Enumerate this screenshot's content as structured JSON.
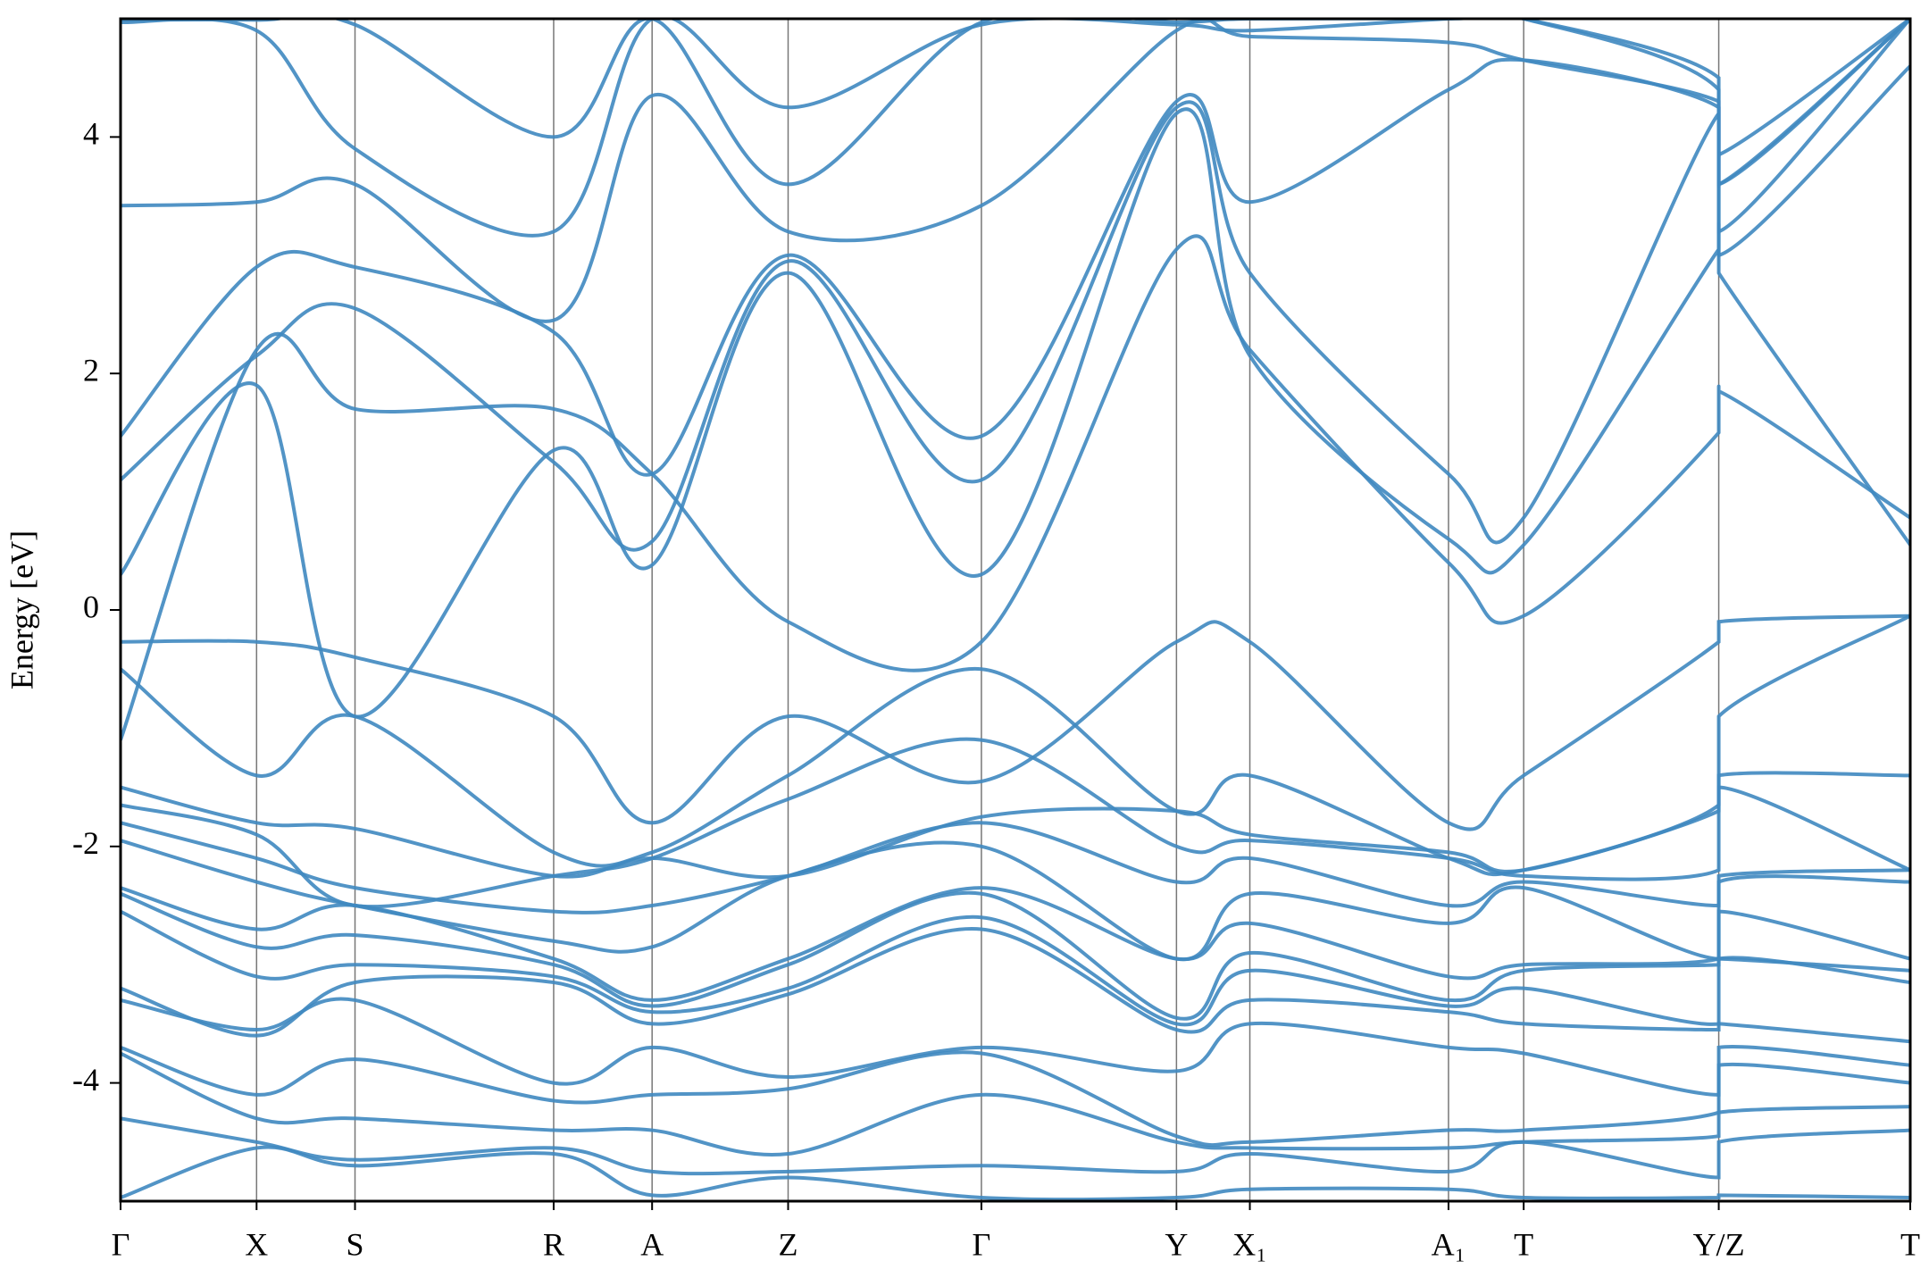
{
  "chart_data": {
    "type": "line",
    "ylabel": "Energy [eV]",
    "x": [
      0,
      0.076,
      0.131,
      0.242,
      0.297,
      0.373,
      0.481,
      0.59,
      0.631,
      0.742,
      0.784,
      0.893,
      0.893,
      1.0
    ],
    "xlim": [
      0,
      1
    ],
    "xticks": [
      {
        "value": 0,
        "label": "Γ"
      },
      {
        "value": 0.076,
        "label": "X"
      },
      {
        "value": 0.131,
        "label": "S"
      },
      {
        "value": 0.242,
        "label": "R"
      },
      {
        "value": 0.297,
        "label": "A"
      },
      {
        "value": 0.373,
        "label": "Z"
      },
      {
        "value": 0.481,
        "label": "Γ"
      },
      {
        "value": 0.59,
        "label": "Y"
      },
      {
        "value": 0.631,
        "label": "X₁"
      },
      {
        "value": 0.742,
        "label": "A₁"
      },
      {
        "value": 0.784,
        "label": "T"
      },
      {
        "value": 0.893,
        "label": "Y/Z"
      },
      {
        "value": 1.0,
        "label": "T"
      }
    ],
    "ylim": [
      -5,
      5
    ],
    "yticks": [
      -4,
      -2,
      0,
      2,
      4
    ],
    "series": [
      {
        "color": "#3f88c0",
        "values": [
          -0.27,
          -0.27,
          -0.4,
          -0.9,
          -1.8,
          -0.9,
          -1.45,
          -0.27,
          -0.27,
          -1.8,
          -1.4,
          -0.27,
          -0.1,
          -0.05
        ]
      },
      {
        "color": "#3f88c0",
        "values": [
          -0.5,
          -1.4,
          -0.9,
          -2.05,
          -2.05,
          -1.4,
          -0.5,
          -1.7,
          -1.4,
          -2.1,
          -2.2,
          -1.65,
          -0.9,
          -0.05
        ]
      },
      {
        "color": "#3f88c0",
        "values": [
          -1.1,
          2.2,
          1.7,
          1.7,
          1.15,
          -0.1,
          -0.27,
          3.05,
          2.2,
          0.4,
          -0.05,
          1.5,
          1.85,
          0.78
        ]
      },
      {
        "color": "#3f88c0",
        "values": [
          0.3,
          1.9,
          -0.9,
          1.35,
          0.38,
          2.85,
          0.3,
          4.2,
          2.15,
          0.6,
          0.55,
          3.05,
          2.85,
          0.55
        ]
      },
      {
        "color": "#3f88c0",
        "values": [
          1.1,
          2.15,
          2.55,
          1.25,
          0.58,
          2.95,
          1.1,
          4.25,
          2.85,
          1.15,
          0.78,
          4.2,
          3.0,
          4.6
        ]
      },
      {
        "color": "#3f88c0",
        "values": [
          1.47,
          2.9,
          2.9,
          2.35,
          1.15,
          3.0,
          1.47,
          4.3,
          3.45,
          4.4,
          4.65,
          4.25,
          3.6,
          5.0
        ]
      },
      {
        "color": "#3f88c0",
        "values": [
          3.42,
          3.45,
          3.6,
          2.45,
          4.35,
          3.2,
          3.42,
          4.9,
          4.85,
          4.8,
          4.65,
          4.3,
          3.85,
          5.0
        ]
      },
      {
        "color": "#3f88c0",
        "values": [
          4.97,
          4.9,
          3.9,
          3.2,
          5.0,
          4.25,
          4.95,
          4.95,
          4.9,
          5.0,
          5.0,
          4.4,
          3.2,
          5.0
        ]
      },
      {
        "color": "#3f88c0",
        "values": [
          4.99,
          4.99,
          4.95,
          4.0,
          5.0,
          3.6,
          4.97,
          4.97,
          5.0,
          5.0,
          5.0,
          4.5,
          3.6,
          5.0
        ]
      },
      {
        "color": "#3f88c0",
        "values": [
          -1.5,
          -1.8,
          -1.85,
          -2.25,
          -2.1,
          -2.25,
          -1.75,
          -1.7,
          -1.9,
          -2.05,
          -2.2,
          -1.7,
          -1.4,
          -1.4
        ]
      },
      {
        "color": "#3f88c0",
        "values": [
          -1.65,
          -1.9,
          -2.5,
          -2.25,
          -2.1,
          -1.6,
          -1.1,
          -2.0,
          -1.95,
          -2.1,
          -2.25,
          -2.2,
          -1.5,
          -2.2
        ]
      },
      {
        "color": "#3f88c0",
        "values": [
          -1.8,
          -2.1,
          -2.35,
          -2.55,
          -2.5,
          -2.25,
          -1.8,
          -2.3,
          -2.1,
          -2.5,
          -2.3,
          -2.5,
          -2.25,
          -2.2
        ]
      },
      {
        "color": "#3f88c0",
        "values": [
          -1.95,
          -2.3,
          -2.5,
          -2.8,
          -2.85,
          -2.25,
          -2.0,
          -2.95,
          -2.4,
          -2.65,
          -2.35,
          -2.95,
          -2.3,
          -2.3
        ]
      },
      {
        "color": "#3f88c0",
        "values": [
          -2.35,
          -2.7,
          -2.5,
          -2.95,
          -3.3,
          -2.95,
          -2.35,
          -2.95,
          -2.65,
          -3.1,
          -3.0,
          -2.95,
          -2.55,
          -2.95
        ]
      },
      {
        "color": "#3f88c0",
        "values": [
          -2.4,
          -2.85,
          -2.75,
          -3.0,
          -3.35,
          -3.0,
          -2.4,
          -3.45,
          -2.9,
          -3.3,
          -3.05,
          -3.0,
          -2.95,
          -3.05
        ]
      },
      {
        "color": "#3f88c0",
        "values": [
          -2.55,
          -3.1,
          -3.0,
          -3.1,
          -3.4,
          -3.2,
          -2.6,
          -3.5,
          -3.05,
          -3.35,
          -3.2,
          -3.5,
          -2.95,
          -3.15
        ]
      },
      {
        "color": "#3f88c0",
        "values": [
          -3.2,
          -3.6,
          -3.15,
          -3.15,
          -3.5,
          -3.25,
          -2.7,
          -3.55,
          -3.3,
          -3.4,
          -3.5,
          -3.55,
          -3.5,
          -3.65
        ]
      },
      {
        "color": "#3f88c0",
        "values": [
          -3.3,
          -3.55,
          -3.3,
          -4.0,
          -3.7,
          -3.95,
          -3.7,
          -3.9,
          -3.5,
          -3.7,
          -3.75,
          -4.1,
          -3.7,
          -3.85
        ]
      },
      {
        "color": "#3f88c0",
        "values": [
          -3.7,
          -4.1,
          -3.8,
          -4.15,
          -4.1,
          -4.05,
          -3.75,
          -4.45,
          -4.5,
          -4.4,
          -4.4,
          -4.25,
          -3.85,
          -4.0
        ]
      },
      {
        "color": "#3f88c0",
        "values": [
          -3.75,
          -4.3,
          -4.3,
          -4.4,
          -4.4,
          -4.6,
          -4.1,
          -4.5,
          -4.55,
          -4.55,
          -4.5,
          -4.45,
          -4.25,
          -4.2
        ]
      },
      {
        "color": "#3f88c0",
        "values": [
          -4.3,
          -4.5,
          -4.65,
          -4.55,
          -4.75,
          -4.75,
          -4.7,
          -4.75,
          -4.6,
          -4.75,
          -4.5,
          -4.8,
          -4.5,
          -4.4
        ]
      },
      {
        "color": "#3f88c0",
        "values": [
          -4.97,
          -4.55,
          -4.7,
          -4.6,
          -4.95,
          -4.8,
          -4.97,
          -4.97,
          -4.9,
          -4.9,
          -4.97,
          -4.97,
          -4.95,
          -4.97
        ]
      }
    ]
  }
}
